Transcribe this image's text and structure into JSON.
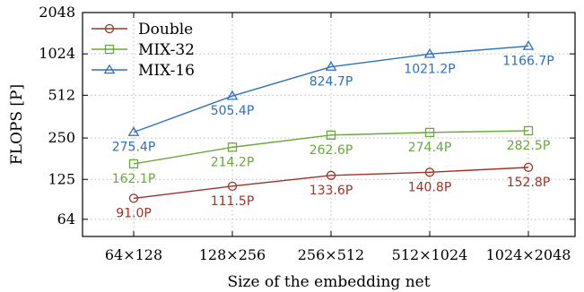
{
  "chart_data": {
    "type": "line",
    "title": "",
    "xlabel": "Size of the embedding net",
    "ylabel": "FLOPS [P]",
    "yscale": "log2",
    "ylim": [
      48,
      2048
    ],
    "yticks": [
      64,
      125,
      250,
      512,
      1024,
      2048
    ],
    "ytick_labels": [
      "64",
      "125",
      "250",
      "512",
      "1024",
      "2048"
    ],
    "categories": [
      "64×128",
      "128×256",
      "256×512",
      "512×1024",
      "1024×2048"
    ],
    "grid": true,
    "legend_position": "top-left",
    "series": [
      {
        "name": "Double",
        "color": "#a03226",
        "marker": "circle",
        "values": [
          91.0,
          111.5,
          133.6,
          140.8,
          152.8
        ],
        "labels": [
          "91.0P",
          "111.5P",
          "133.6P",
          "140.8P",
          "152.8P"
        ]
      },
      {
        "name": "MIX-32",
        "color": "#6aa83a",
        "marker": "square",
        "values": [
          162.1,
          214.2,
          262.6,
          274.4,
          282.5
        ],
        "labels": [
          "162.1P",
          "214.2P",
          "262.6P",
          "274.4P",
          "282.5P"
        ]
      },
      {
        "name": "MIX-16",
        "color": "#2d6fc1",
        "marker": "triangle",
        "values": [
          275.4,
          505.4,
          824.7,
          1021.2,
          1166.7
        ],
        "labels": [
          "275.4P",
          "505.4P",
          "824.7P",
          "1021.2P",
          "1166.7P"
        ]
      }
    ]
  }
}
